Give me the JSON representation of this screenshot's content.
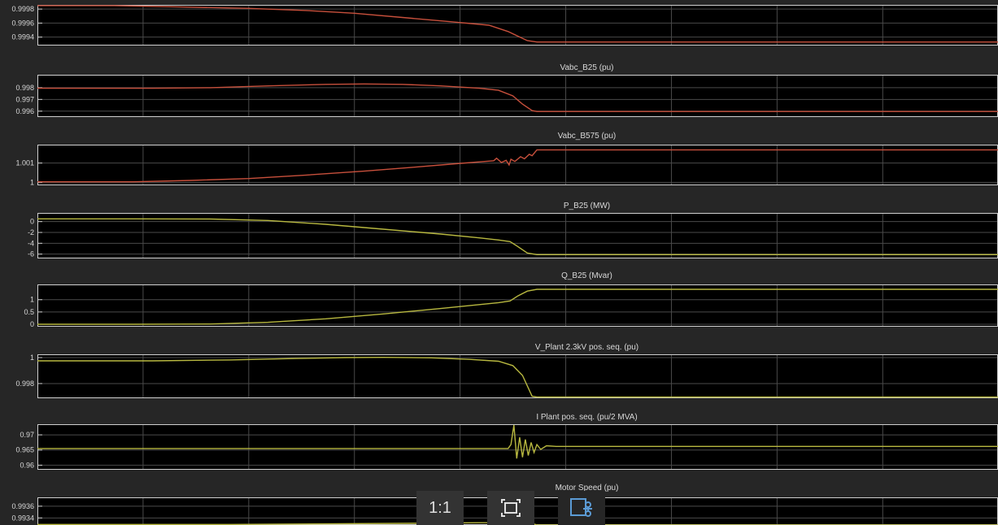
{
  "chart_data": [
    {
      "type": "line",
      "title": "",
      "yticks": [
        {
          "value": 0.9994,
          "label": "0.9994"
        },
        {
          "value": 0.9996,
          "label": "0.9996"
        },
        {
          "value": 0.9998,
          "label": "0.9998"
        }
      ],
      "ylim": [
        0.99928,
        0.99986
      ],
      "color": "#c8503c",
      "series": [
        {
          "values": [
            [
              0,
              0.99985
            ],
            [
              0.08,
              0.99985
            ],
            [
              0.15,
              0.99983
            ],
            [
              0.22,
              0.99981
            ],
            [
              0.28,
              0.99978
            ],
            [
              0.33,
              0.99974
            ],
            [
              0.38,
              0.99968
            ],
            [
              0.43,
              0.99962
            ],
            [
              0.47,
              0.99957
            ],
            [
              0.49,
              0.99948
            ],
            [
              0.51,
              0.99935
            ],
            [
              0.52,
              0.99933
            ],
            [
              0.6,
              0.99933
            ],
            [
              0.8,
              0.99933
            ],
            [
              1,
              0.99933
            ]
          ]
        }
      ]
    },
    {
      "type": "line",
      "title": "Vabc_B25 (pu)",
      "yticks": [
        {
          "value": 0.996,
          "label": "0.996"
        },
        {
          "value": 0.997,
          "label": "0.997"
        },
        {
          "value": 0.998,
          "label": "0.998"
        }
      ],
      "ylim": [
        0.9955,
        0.9991
      ],
      "color": "#c8503c",
      "series": [
        {
          "values": [
            [
              0,
              0.99795
            ],
            [
              0.12,
              0.99795
            ],
            [
              0.18,
              0.998
            ],
            [
              0.24,
              0.99815
            ],
            [
              0.3,
              0.99828
            ],
            [
              0.34,
              0.99832
            ],
            [
              0.38,
              0.99828
            ],
            [
              0.42,
              0.99815
            ],
            [
              0.46,
              0.99795
            ],
            [
              0.48,
              0.99778
            ],
            [
              0.495,
              0.9973
            ],
            [
              0.505,
              0.9966
            ],
            [
              0.515,
              0.99605
            ],
            [
              0.52,
              0.99597
            ],
            [
              1,
              0.99597
            ]
          ]
        }
      ]
    },
    {
      "type": "line",
      "title": "Vabc_B575 (pu)",
      "yticks": [
        {
          "value": 1.0,
          "label": "1"
        },
        {
          "value": 1.001,
          "label": "1.001"
        }
      ],
      "ylim": [
        0.99985,
        1.00195
      ],
      "color": "#c8503c",
      "series": [
        {
          "values": [
            [
              0,
              1.00003
            ],
            [
              0.03,
              1.00003
            ],
            [
              0.1,
              1.00003
            ],
            [
              0.16,
              1.0001
            ],
            [
              0.22,
              1.0002
            ],
            [
              0.28,
              1.00038
            ],
            [
              0.34,
              1.00058
            ],
            [
              0.39,
              1.00078
            ],
            [
              0.43,
              1.00094
            ],
            [
              0.46,
              1.00106
            ],
            [
              0.475,
              1.00112
            ],
            [
              0.478,
              1.00125
            ],
            [
              0.483,
              1.00103
            ],
            [
              0.488,
              1.00114
            ],
            [
              0.491,
              1.0009
            ],
            [
              0.493,
              1.0012
            ],
            [
              0.497,
              1.00108
            ],
            [
              0.503,
              1.00133
            ],
            [
              0.507,
              1.00122
            ],
            [
              0.512,
              1.00145
            ],
            [
              0.515,
              1.00138
            ],
            [
              0.52,
              1.00168
            ],
            [
              1,
              1.00168
            ]
          ]
        }
      ]
    },
    {
      "type": "line",
      "title": "P_B25 (MW)",
      "yticks": [
        {
          "value": -6,
          "label": "-6"
        },
        {
          "value": -4,
          "label": "-4"
        },
        {
          "value": -2,
          "label": "-2"
        },
        {
          "value": 0,
          "label": "0"
        }
      ],
      "ylim": [
        -6.8,
        1.6
      ],
      "color": "#b8b840",
      "series": [
        {
          "values": [
            [
              0,
              0.5
            ],
            [
              0.1,
              0.5
            ],
            [
              0.18,
              0.48
            ],
            [
              0.24,
              0.2
            ],
            [
              0.3,
              -0.5
            ],
            [
              0.36,
              -1.4
            ],
            [
              0.42,
              -2.3
            ],
            [
              0.46,
              -3.0
            ],
            [
              0.48,
              -3.4
            ],
            [
              0.492,
              -3.7
            ],
            [
              0.5,
              -4.6
            ],
            [
              0.51,
              -5.8
            ],
            [
              0.52,
              -6.1
            ],
            [
              1,
              -6.1
            ]
          ]
        }
      ]
    },
    {
      "type": "line",
      "title": "Q_B25 (Mvar)",
      "yticks": [
        {
          "value": 0,
          "label": "0"
        },
        {
          "value": 0.5,
          "label": "0.5"
        },
        {
          "value": 1,
          "label": "1"
        }
      ],
      "ylim": [
        -0.1,
        1.62
      ],
      "color": "#b8b840",
      "series": [
        {
          "values": [
            [
              0,
              0.0
            ],
            [
              0.1,
              0.0
            ],
            [
              0.18,
              0.01
            ],
            [
              0.24,
              0.08
            ],
            [
              0.3,
              0.22
            ],
            [
              0.36,
              0.42
            ],
            [
              0.42,
              0.64
            ],
            [
              0.46,
              0.8
            ],
            [
              0.48,
              0.88
            ],
            [
              0.492,
              0.95
            ],
            [
              0.5,
              1.15
            ],
            [
              0.51,
              1.35
            ],
            [
              0.52,
              1.42
            ],
            [
              1,
              1.42
            ]
          ]
        }
      ]
    },
    {
      "type": "line",
      "title": "V_Plant 2.3kV pos. seq. (pu)",
      "yticks": [
        {
          "value": 0.998,
          "label": "0.998"
        },
        {
          "value": 1.0,
          "label": "1"
        }
      ],
      "ylim": [
        0.99687,
        1.00025
      ],
      "color": "#b8b840",
      "series": [
        {
          "values": [
            [
              0,
              0.99975
            ],
            [
              0.12,
              0.99975
            ],
            [
              0.2,
              0.99982
            ],
            [
              0.27,
              0.99993
            ],
            [
              0.32,
              1.0
            ],
            [
              0.36,
              1.00002
            ],
            [
              0.41,
              0.99998
            ],
            [
              0.45,
              0.99986
            ],
            [
              0.48,
              0.99972
            ],
            [
              0.495,
              0.99938
            ],
            [
              0.505,
              0.99862
            ],
            [
              0.515,
              0.99702
            ],
            [
              0.52,
              0.99696
            ],
            [
              1,
              0.99696
            ]
          ]
        }
      ]
    },
    {
      "type": "line",
      "title": "I Plant pos. seq. (pu/2 MVA)",
      "yticks": [
        {
          "value": 0.96,
          "label": "0.96"
        },
        {
          "value": 0.965,
          "label": "0.965"
        },
        {
          "value": 0.97,
          "label": "0.97"
        }
      ],
      "ylim": [
        0.9585,
        0.9735
      ],
      "color": "#b8b840",
      "series": [
        {
          "values": [
            [
              0,
              0.9655
            ],
            [
              0.4,
              0.9655
            ],
            [
              0.49,
              0.9655
            ],
            [
              0.493,
              0.9668
            ],
            [
              0.496,
              0.9732
            ],
            [
              0.499,
              0.9622
            ],
            [
              0.502,
              0.9692
            ],
            [
              0.505,
              0.9626
            ],
            [
              0.508,
              0.9685
            ],
            [
              0.511,
              0.9632
            ],
            [
              0.514,
              0.9675
            ],
            [
              0.517,
              0.9642
            ],
            [
              0.52,
              0.9668
            ],
            [
              0.524,
              0.9652
            ],
            [
              0.53,
              0.9664
            ],
            [
              0.54,
              0.9662
            ],
            [
              1,
              0.9662
            ]
          ]
        }
      ]
    },
    {
      "type": "line",
      "title": "Motor Speed (pu)",
      "yticks": [
        {
          "value": 0.9934,
          "label": "0.9934"
        },
        {
          "value": 0.9936,
          "label": "0.9936"
        }
      ],
      "ylim": [
        0.99328,
        0.99375
      ],
      "color": "#b8b840",
      "series": [
        {
          "values": [
            [
              0,
              0.99329
            ],
            [
              0.2,
              0.99329
            ],
            [
              0.3,
              0.9933
            ],
            [
              0.4,
              0.99331
            ],
            [
              0.47,
              0.99332
            ],
            [
              0.485,
              0.99334
            ],
            [
              0.49,
              0.9936
            ],
            [
              0.493,
              0.99338
            ],
            [
              0.497,
              0.99348
            ],
            [
              0.501,
              0.99336
            ],
            [
              0.505,
              0.99342
            ],
            [
              0.51,
              0.99334
            ],
            [
              0.52,
              0.99328
            ],
            [
              1,
              0.99328
            ]
          ]
        }
      ]
    }
  ],
  "colors": {
    "background": "#262626",
    "axes": "#000000",
    "grid": "#4a4a4a",
    "axis_line": "#d0d0d0",
    "text": "#d9d9d9"
  },
  "toolbar": {
    "zoom_label": "1:1",
    "fit_icon": "fit-to-window-icon",
    "snip_icon": "snip-tool-icon"
  }
}
